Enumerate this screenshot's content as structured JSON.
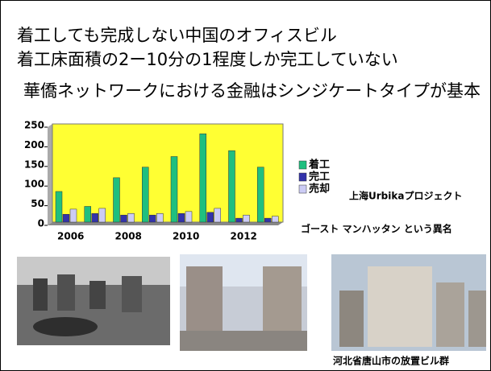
{
  "slide": {
    "title_lines": [
      "着工しても完成しない中国のオフィスビル",
      "着工床面積の2ー10分の1程度しか完工していない"
    ],
    "subtitle": "華僑ネットワークにおける金融はシンジケートタイプが基本",
    "project_label": "上海Urbikaプロジェクト",
    "nickname": "ゴースト マンハッタン という異名",
    "photo_caption": "河北省唐山市の放置ビル群"
  },
  "chart_data": {
    "type": "bar",
    "categories": [
      "2006",
      null,
      "2008",
      null,
      "2010",
      null,
      "2012",
      null
    ],
    "series": [
      {
        "name": "着工",
        "color": "#1fbf7f",
        "values": [
          78,
          40,
          113,
          140,
          167,
          225,
          182,
          140
        ]
      },
      {
        "name": "完工",
        "color": "#3333aa",
        "values": [
          20,
          22,
          18,
          18,
          22,
          25,
          10,
          10
        ]
      },
      {
        "name": "売却",
        "color": "#ccccf5",
        "values": [
          33,
          35,
          22,
          22,
          27,
          35,
          18,
          15
        ]
      }
    ],
    "ylim": [
      0,
      250
    ],
    "yticks": [
      0,
      50,
      100,
      150,
      200,
      250
    ],
    "background": "#ffff33"
  }
}
